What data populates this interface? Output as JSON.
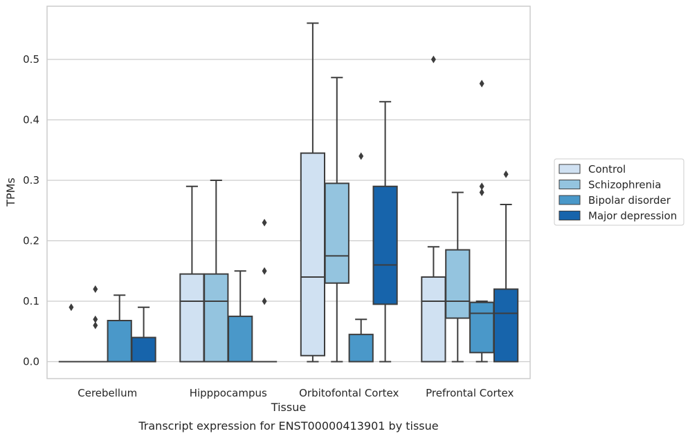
{
  "chart_data": {
    "type": "box",
    "title": "",
    "caption": "Transcript expression for ENST00000413901 by tissue",
    "xlabel": "Tissue",
    "ylabel": "TPMs",
    "ylim": [
      -0.028,
      0.588
    ],
    "yticks": [
      0.0,
      0.1,
      0.2,
      0.3,
      0.4,
      0.5
    ],
    "ytick_labels": [
      "0.0",
      "0.1",
      "0.2",
      "0.3",
      "0.4",
      "0.5"
    ],
    "grid": "horizontal",
    "legend_position": "right",
    "categories": [
      "Cerebellum",
      "Hipppocampus",
      "Orbitofontal Cortex",
      "Prefrontal Cortex"
    ],
    "series": [
      {
        "name": "Control",
        "color": "#d0e1f2",
        "boxes": [
          {
            "whislo": 0.0,
            "q1": 0.0,
            "med": 0.0,
            "q3": 0.0,
            "whishi": 0.0,
            "fliers": [
              0.09
            ]
          },
          {
            "whislo": 0.0,
            "q1": 0.0,
            "med": 0.1,
            "q3": 0.145,
            "whishi": 0.29,
            "fliers": []
          },
          {
            "whislo": 0.0,
            "q1": 0.01,
            "med": 0.14,
            "q3": 0.345,
            "whishi": 0.56,
            "fliers": []
          },
          {
            "whislo": 0.0,
            "q1": 0.0,
            "med": 0.1,
            "q3": 0.14,
            "whishi": 0.19,
            "fliers": [
              0.5
            ]
          }
        ]
      },
      {
        "name": "Schizophrenia",
        "color": "#94c4df",
        "boxes": [
          {
            "whislo": 0.0,
            "q1": 0.0,
            "med": 0.0,
            "q3": 0.0,
            "whishi": 0.0,
            "fliers": [
              0.06,
              0.07,
              0.12
            ]
          },
          {
            "whislo": 0.0,
            "q1": 0.0,
            "med": 0.1,
            "q3": 0.145,
            "whishi": 0.3,
            "fliers": []
          },
          {
            "whislo": 0.0,
            "q1": 0.13,
            "med": 0.175,
            "q3": 0.295,
            "whishi": 0.47,
            "fliers": []
          },
          {
            "whislo": 0.0,
            "q1": 0.072,
            "med": 0.1,
            "q3": 0.185,
            "whishi": 0.28,
            "fliers": []
          }
        ]
      },
      {
        "name": "Bipolar disorder",
        "color": "#4a98c9",
        "boxes": [
          {
            "whislo": 0.0,
            "q1": 0.0,
            "med": 0.0,
            "q3": 0.068,
            "whishi": 0.11,
            "fliers": []
          },
          {
            "whislo": 0.0,
            "q1": 0.0,
            "med": 0.0,
            "q3": 0.075,
            "whishi": 0.15,
            "fliers": []
          },
          {
            "whislo": 0.0,
            "q1": 0.0,
            "med": 0.0,
            "q3": 0.045,
            "whishi": 0.07,
            "fliers": [
              0.34
            ]
          },
          {
            "whislo": 0.0,
            "q1": 0.015,
            "med": 0.08,
            "q3": 0.098,
            "whishi": 0.1,
            "fliers": [
              0.28,
              0.29,
              0.46
            ]
          }
        ]
      },
      {
        "name": "Major depression",
        "color": "#1764ab",
        "boxes": [
          {
            "whislo": 0.0,
            "q1": 0.0,
            "med": 0.0,
            "q3": 0.04,
            "whishi": 0.09,
            "fliers": []
          },
          {
            "whislo": 0.0,
            "q1": 0.0,
            "med": 0.0,
            "q3": 0.0,
            "whishi": 0.0,
            "fliers": [
              0.1,
              0.15,
              0.23
            ]
          },
          {
            "whislo": 0.0,
            "q1": 0.095,
            "med": 0.16,
            "q3": 0.29,
            "whishi": 0.43,
            "fliers": []
          },
          {
            "whislo": 0.0,
            "q1": 0.0,
            "med": 0.08,
            "q3": 0.12,
            "whishi": 0.26,
            "fliers": [
              0.31
            ]
          }
        ]
      }
    ]
  }
}
